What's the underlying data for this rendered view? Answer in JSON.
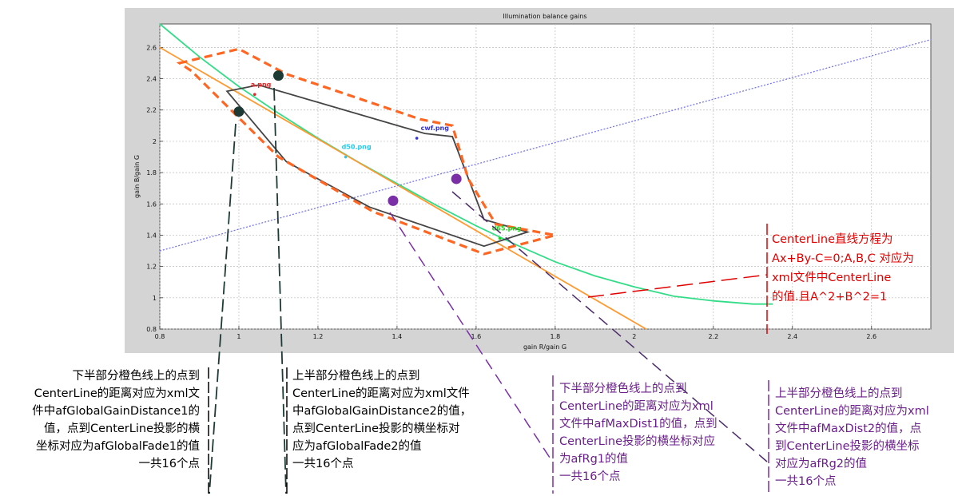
{
  "chart_data": {
    "type": "line",
    "title": "Illumination balance gains",
    "xlabel": "gain R/gain G",
    "ylabel": "gain B/gain G",
    "xlim": [
      0.8,
      2.75
    ],
    "ylim": [
      0.8,
      2.75
    ],
    "x_ticks": [
      "0.8",
      "1",
      "1.2",
      "1.4",
      "1.6",
      "1.8",
      "2",
      "2.2",
      "2.4",
      "2.6"
    ],
    "y_ticks": [
      "0.8",
      "1",
      "1.2",
      "1.4",
      "1.6",
      "1.8",
      "2",
      "2.2",
      "2.4",
      "2.6"
    ],
    "grid": true,
    "series": [
      {
        "color": "#33dd88",
        "style": "solid",
        "x": [
          0.8,
          0.9,
          1.0,
          1.1,
          1.2,
          1.3,
          1.4,
          1.5,
          1.6,
          1.7,
          1.8,
          1.9,
          2.0,
          2.1,
          2.2,
          2.3,
          2.35
        ],
        "y": [
          2.75,
          2.54,
          2.35,
          2.18,
          2.02,
          1.87,
          1.73,
          1.59,
          1.46,
          1.34,
          1.23,
          1.14,
          1.07,
          1.01,
          0.98,
          0.96,
          0.96
        ]
      },
      {
        "color": "#ff9a30",
        "style": "solid",
        "x": [
          0.8,
          2.03
        ],
        "y": [
          2.6,
          0.8
        ]
      },
      {
        "color": "#7777ee",
        "style": "dotted",
        "x": [
          0.8,
          2.75
        ],
        "y": [
          1.3,
          2.65
        ]
      },
      {
        "color": "#444444",
        "style": "solid",
        "closed": true,
        "x": [
          0.97,
          1.05,
          1.47,
          1.54,
          1.62,
          1.73,
          1.62,
          1.33,
          1.12,
          0.97
        ],
        "y": [
          2.32,
          2.36,
          2.05,
          2.03,
          1.5,
          1.42,
          1.33,
          1.58,
          1.87,
          2.32
        ]
      },
      {
        "color": "#ff6622",
        "style": "dashed",
        "closed": true,
        "x": [
          0.85,
          1.0,
          1.12,
          1.46,
          1.54,
          1.58,
          1.65,
          1.8,
          1.62,
          1.34,
          1.1,
          0.88,
          0.85
        ],
        "y": [
          2.5,
          2.59,
          2.43,
          2.14,
          2.1,
          1.76,
          1.47,
          1.4,
          1.28,
          1.55,
          1.9,
          2.45,
          2.5
        ]
      }
    ],
    "annotations": [
      {
        "text": "a.png",
        "x": 1.03,
        "y": 2.35,
        "color": "#ee2222"
      },
      {
        "text": "cwf.png",
        "x": 1.46,
        "y": 2.07,
        "color": "#3333cc"
      },
      {
        "text": "d50.png",
        "x": 1.26,
        "y": 1.95,
        "color": "#22ccee"
      },
      {
        "text": "d65.png",
        "x": 1.64,
        "y": 1.43,
        "color": "#22cc22"
      }
    ],
    "annotation_points": [
      {
        "x": 1.04,
        "y": 2.3,
        "color": "#ee2222"
      },
      {
        "x": 1.45,
        "y": 2.02,
        "color": "#3333cc"
      },
      {
        "x": 1.27,
        "y": 1.9,
        "color": "#22ccee"
      },
      {
        "x": 1.66,
        "y": 1.38,
        "color": "#22cc22"
      }
    ],
    "markers": [
      {
        "x": 1.0,
        "y": 2.19,
        "color": "#1d3a34"
      },
      {
        "x": 1.1,
        "y": 2.42,
        "color": "#1d3a34"
      },
      {
        "x": 1.39,
        "y": 1.62,
        "color": "#7b2fa6"
      },
      {
        "x": 1.55,
        "y": 1.76,
        "color": "#7b2fa6"
      }
    ]
  },
  "notes": {
    "lower_global": [
      "下半部分橙色线上的点到",
      "CenterLine的距离对应为xml文",
      "件中afGlobalGainDistance1的",
      "值，点到CenterLine投影的横",
      "坐标对应为afGlobalFade1的值",
      "一共16个点"
    ],
    "upper_global": [
      "上半部分橙色线上的点到",
      "CenterLine的距离对应为xml文件",
      "中afGlobalGainDistance2的值，",
      "点到CenterLine投影的横坐标对",
      "应为afGlobalFade2的值",
      "一共16个点"
    ],
    "lower_rg": [
      "下半部分橙色线上的点到",
      "CenterLine的距离对应为xml",
      "文件中afMaxDist1的值，点到",
      "CenterLine投影的横坐标对应",
      "为afRg1的值",
      "一共16个点"
    ],
    "upper_rg": [
      "上半部分橙色线上的点到",
      "CenterLine的距离对应为xml",
      "文件中afMaxDist2的值，点",
      "到CenterLine投影的横坐标",
      "对应为afRg2的值",
      "一共16个点"
    ],
    "centerline": [
      "CenterLine直线方程为",
      "Ax+By-C=0;A,B,C 对应为",
      "xml文件中CenterLine",
      "的值.且A^2+B^2=1"
    ]
  },
  "colors": {
    "dark_leader": "#1d3a34",
    "purple_leader": "#7b2fa6",
    "red_leader": "#e00000"
  }
}
